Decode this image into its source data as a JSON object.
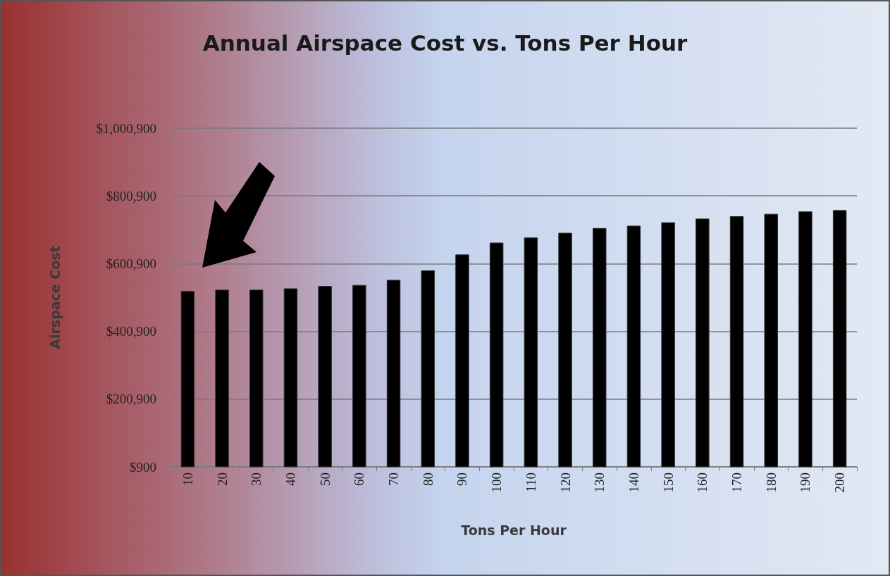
{
  "chart_data": {
    "type": "bar",
    "title": "Annual Airspace Cost vs. Tons Per Hour",
    "xlabel": "Tons Per Hour",
    "ylabel": "Airspace Cost",
    "categories": [
      "10",
      "20",
      "30",
      "40",
      "50",
      "60",
      "70",
      "80",
      "90",
      "100",
      "110",
      "120",
      "130",
      "140",
      "150",
      "160",
      "170",
      "180",
      "190",
      "200"
    ],
    "values": [
      520000,
      524000,
      524000,
      528000,
      535000,
      538000,
      553000,
      581000,
      628000,
      663000,
      678000,
      692000,
      706000,
      713000,
      723000,
      734000,
      741000,
      748000,
      755000,
      759000
    ],
    "color": "#000000",
    "ylim": [
      900,
      1000900
    ],
    "yticks": [
      {
        "value": 900,
        "label": "$900"
      },
      {
        "value": 200900,
        "label": "$200,900"
      },
      {
        "value": 400900,
        "label": "$400,900"
      },
      {
        "value": 600900,
        "label": "$600,900"
      },
      {
        "value": 800900,
        "label": "$800,900"
      },
      {
        "value": 1000900,
        "label": "$1,000,900"
      }
    ],
    "grid": "y"
  }
}
